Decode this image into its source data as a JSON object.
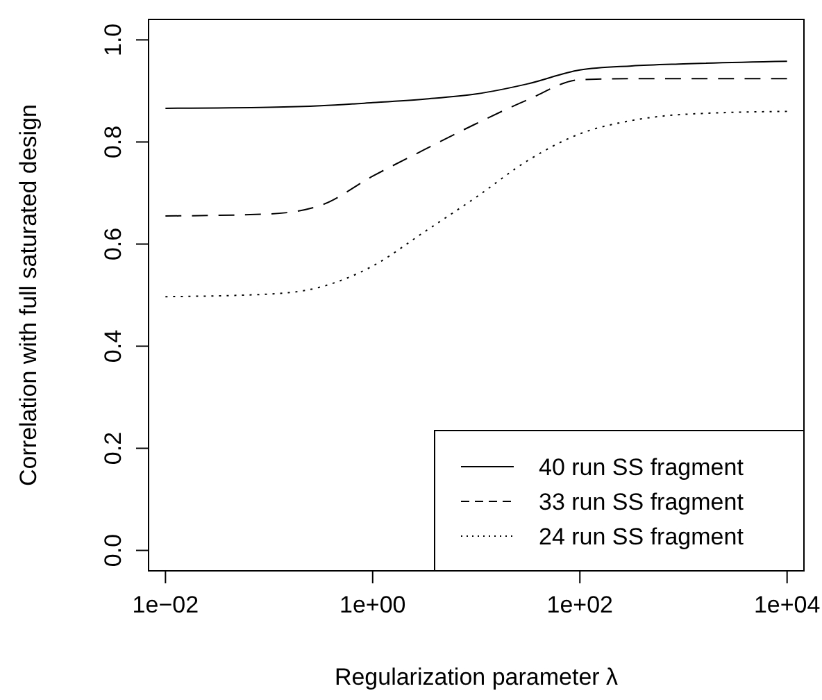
{
  "chart_data": {
    "type": "line",
    "xlabel": "Regularization parameter λ",
    "ylabel": "Correlation with full saturated design",
    "log": "x",
    "xlim": [
      0.00687,
      14550
    ],
    "ylim": [
      -0.04,
      1.04
    ],
    "xticks": [
      {
        "value": 0.01,
        "label": "1e−02"
      },
      {
        "value": 1,
        "label": "1e+00"
      },
      {
        "value": 100,
        "label": "1e+02"
      },
      {
        "value": 10000,
        "label": "1e+04"
      }
    ],
    "yticks": [
      {
        "value": 0,
        "label": "0.0"
      },
      {
        "value": 0.2,
        "label": "0.2"
      },
      {
        "value": 0.4,
        "label": "0.4"
      },
      {
        "value": 0.6,
        "label": "0.6"
      },
      {
        "value": 0.8,
        "label": "0.8"
      },
      {
        "value": 1,
        "label": "1.0"
      }
    ],
    "x": [
      0.01,
      0.1,
      0.316,
      1,
      3.16,
      10,
      31.6,
      100,
      316,
      1000,
      10000
    ],
    "legend": "bottom right",
    "grid": false,
    "marker": "none",
    "series": [
      {
        "name": "40 run SS fragment",
        "color": "#000000",
        "line_style": "solid",
        "values": [
          0.866,
          0.868,
          0.871,
          0.877,
          0.884,
          0.894,
          0.914,
          0.941,
          0.949,
          0.953,
          0.958
        ]
      },
      {
        "name": "33 run SS fragment",
        "color": "#000000",
        "line_style": "dashed",
        "values": [
          0.655,
          0.659,
          0.676,
          0.733,
          0.785,
          0.836,
          0.883,
          0.922,
          0.924,
          0.924,
          0.924
        ]
      },
      {
        "name": "24 run SS fragment",
        "color": "#000000",
        "line_style": "dotted",
        "values": [
          0.497,
          0.502,
          0.516,
          0.557,
          0.624,
          0.692,
          0.764,
          0.816,
          0.842,
          0.854,
          0.86
        ]
      }
    ]
  }
}
